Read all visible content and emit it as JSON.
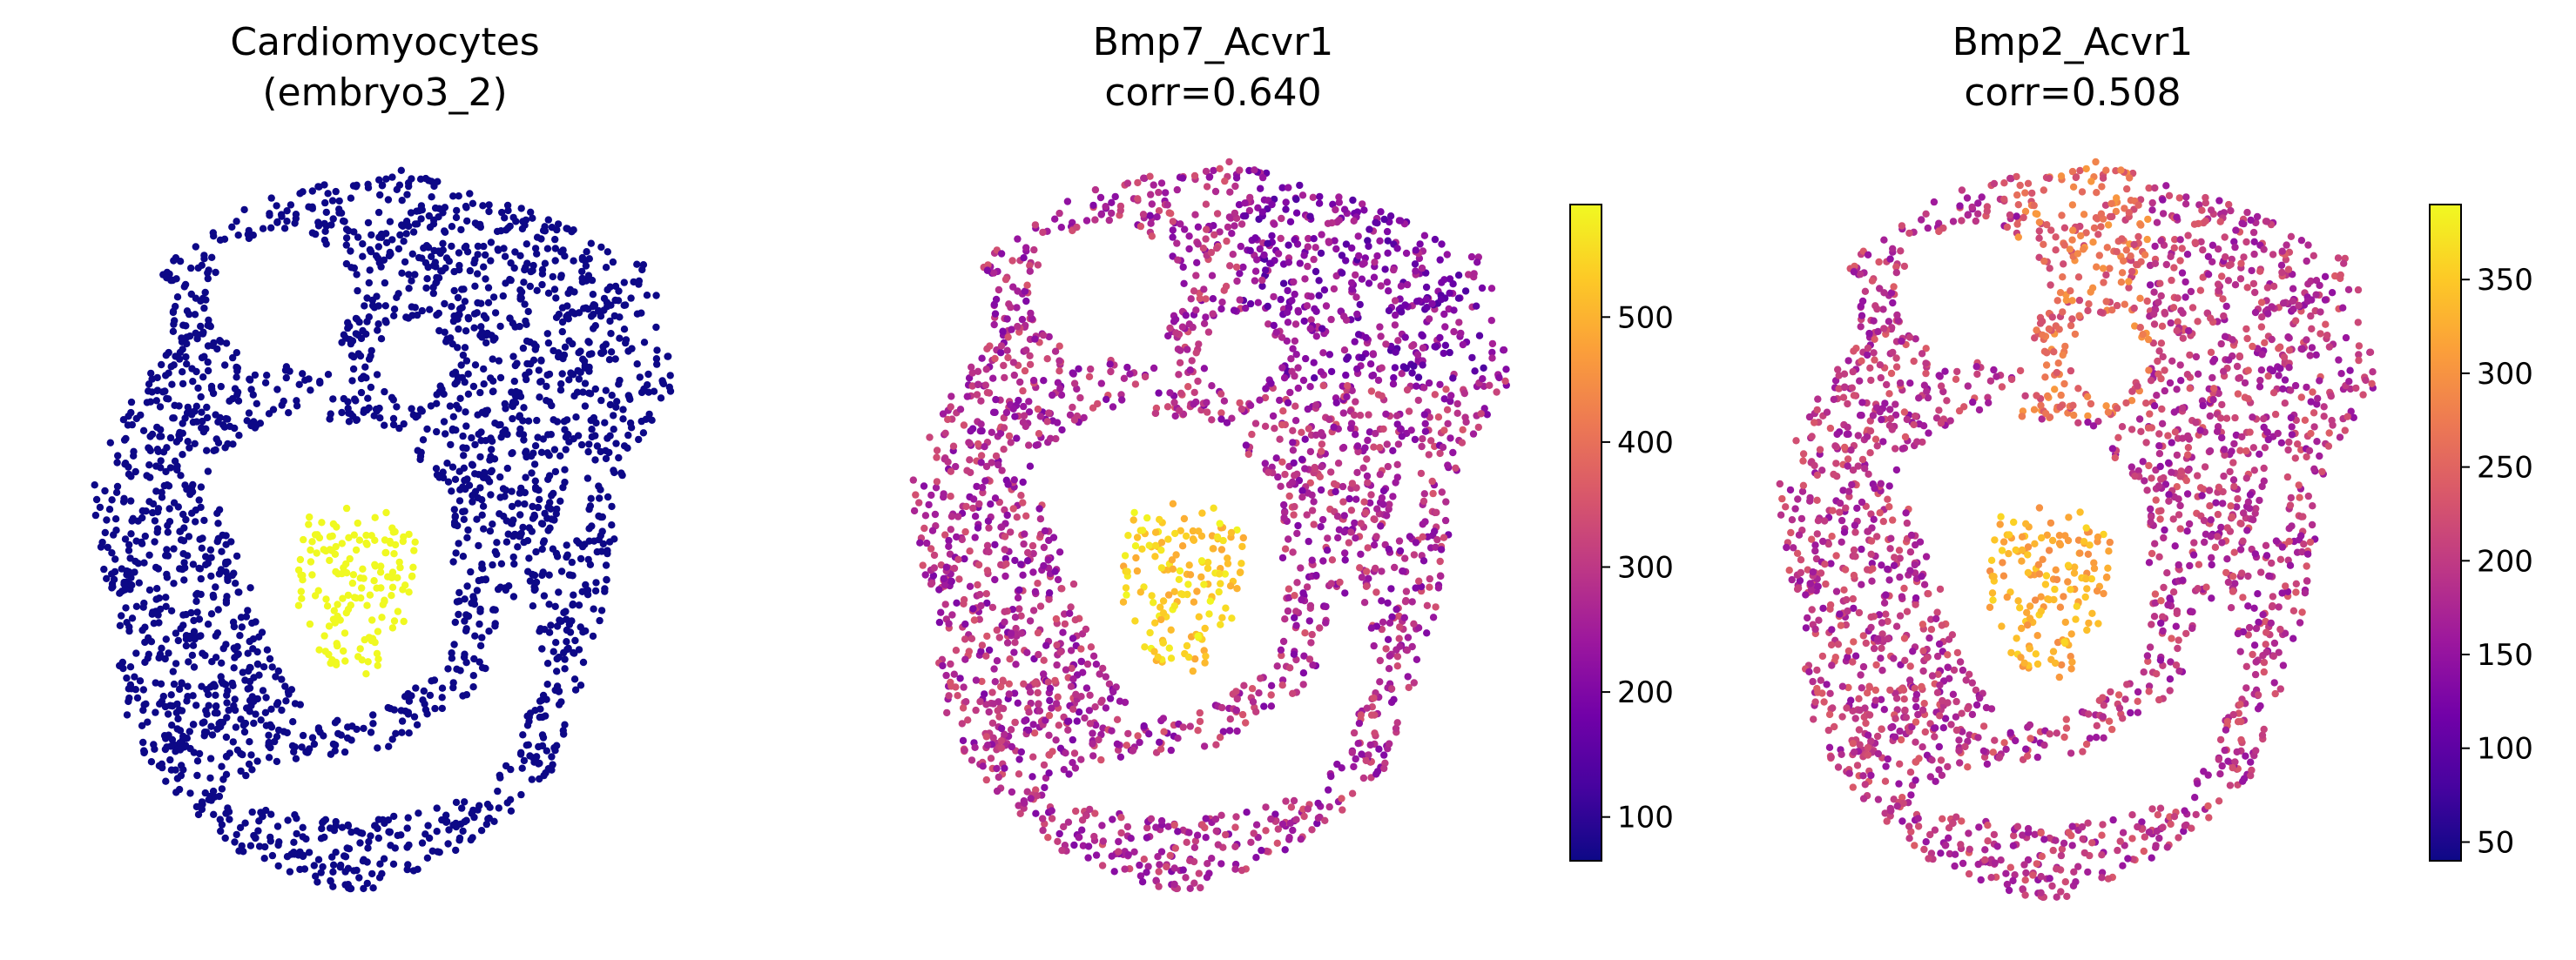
{
  "chart_data": [
    {
      "type": "scatter",
      "title_lines": [
        "Cardiomyocytes",
        "(embryo3_2)"
      ],
      "legend": "none",
      "axes_visible": false,
      "point_color_background": "#0d0887",
      "point_color_highlight": "#f0f921",
      "highlight_group": "Cardiomyocytes"
    },
    {
      "type": "scatter",
      "title_lines": [
        "Bmp7_Acvr1",
        "corr=0.640"
      ],
      "colormap": "plasma",
      "colorbar": {
        "range": [
          65,
          590
        ],
        "ticks": [
          100,
          200,
          300,
          400,
          500
        ],
        "tick_labels": [
          "100",
          "200",
          "300",
          "400",
          "500"
        ]
      },
      "axes_visible": false
    },
    {
      "type": "scatter",
      "title_lines": [
        "Bmp2_Acvr1",
        "corr=0.508"
      ],
      "colormap": "plasma",
      "colorbar": {
        "range": [
          40,
          390
        ],
        "ticks": [
          50,
          100,
          150,
          200,
          250,
          300,
          350
        ],
        "tick_labels": [
          "50",
          "100",
          "150",
          "200",
          "250",
          "300",
          "350"
        ]
      },
      "axes_visible": false
    }
  ],
  "colors": {
    "plasma": [
      "#0d0887",
      "#46039f",
      "#7201a8",
      "#9c179e",
      "#bd3786",
      "#d8576b",
      "#ed7953",
      "#fb9f3a",
      "#fdca26",
      "#f0f921"
    ]
  }
}
